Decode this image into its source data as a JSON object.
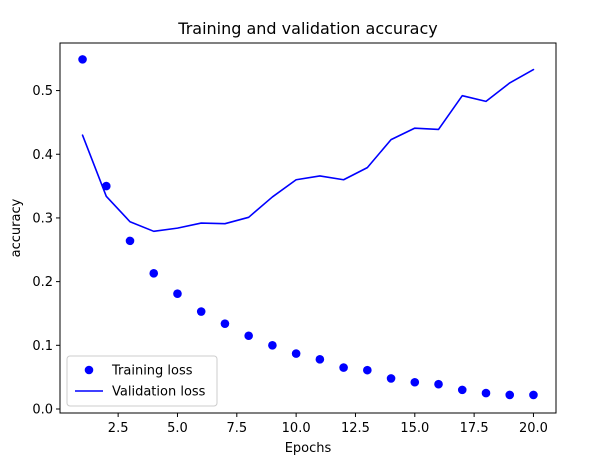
{
  "chart_data": {
    "type": "line",
    "title": "Training and validation accuracy",
    "xlabel": "Epochs",
    "ylabel": "accuracy",
    "xlim": [
      0.05,
      20.95
    ],
    "ylim": [
      -0.0063,
      0.5747
    ],
    "xticks": [
      {
        "value": 2.5,
        "label": "2.5"
      },
      {
        "value": 5.0,
        "label": "5.0"
      },
      {
        "value": 7.5,
        "label": "7.5"
      },
      {
        "value": 10.0,
        "label": "10.0"
      },
      {
        "value": 12.5,
        "label": "12.5"
      },
      {
        "value": 15.0,
        "label": "15.0"
      },
      {
        "value": 17.5,
        "label": "17.5"
      },
      {
        "value": 20.0,
        "label": "20.0"
      }
    ],
    "yticks": [
      {
        "value": 0.0,
        "label": "0.0"
      },
      {
        "value": 0.1,
        "label": "0.1"
      },
      {
        "value": 0.2,
        "label": "0.2"
      },
      {
        "value": 0.3,
        "label": "0.3"
      },
      {
        "value": 0.4,
        "label": "0.4"
      },
      {
        "value": 0.5,
        "label": "0.5"
      }
    ],
    "grid": false,
    "legend_position": "lower-left",
    "x": [
      1,
      2,
      3,
      4,
      5,
      6,
      7,
      8,
      9,
      10,
      11,
      12,
      13,
      14,
      15,
      16,
      17,
      18,
      19,
      20
    ],
    "series": [
      {
        "name": "Training loss",
        "style": "markers",
        "color": "#0000ff",
        "values": [
          0.549,
          0.35,
          0.264,
          0.213,
          0.181,
          0.153,
          0.134,
          0.115,
          0.1,
          0.087,
          0.078,
          0.065,
          0.061,
          0.048,
          0.042,
          0.039,
          0.03,
          0.025,
          0.022,
          0.022
        ]
      },
      {
        "name": "Validation loss",
        "style": "line",
        "color": "#0000ff",
        "values": [
          0.43,
          0.334,
          0.294,
          0.279,
          0.284,
          0.292,
          0.291,
          0.301,
          0.333,
          0.36,
          0.366,
          0.36,
          0.379,
          0.423,
          0.441,
          0.439,
          0.492,
          0.483,
          0.512,
          0.533
        ]
      }
    ]
  }
}
